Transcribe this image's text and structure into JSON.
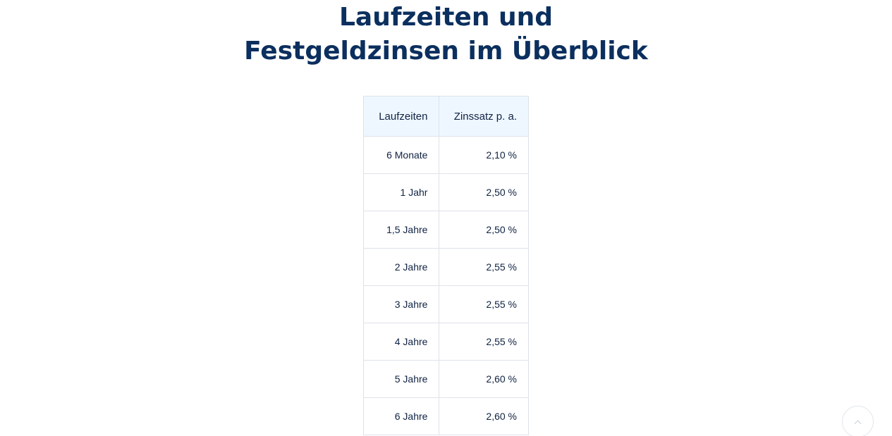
{
  "heading": {
    "line1": "Laufzeiten und",
    "line2": "Festgeldzinsen im Überblick"
  },
  "table": {
    "headers": [
      "Laufzeiten",
      "Zinssatz p. a."
    ],
    "rows": [
      {
        "term": "6 Monate",
        "rate": "2,10 %"
      },
      {
        "term": "1 Jahr",
        "rate": "2,50 %"
      },
      {
        "term": "1,5 Jahre",
        "rate": "2,50 %"
      },
      {
        "term": "2 Jahre",
        "rate": "2,55 %"
      },
      {
        "term": "3 Jahre",
        "rate": "2,55 %"
      },
      {
        "term": "4 Jahre",
        "rate": "2,55 %"
      },
      {
        "term": "5 Jahre",
        "rate": "2,60 %"
      },
      {
        "term": "6 Jahre",
        "rate": "2,60 %"
      }
    ]
  },
  "scroll_to_top": {
    "icon": "chevron-up-icon"
  },
  "colors": {
    "heading": "#0b2f5e",
    "table_header_bg": "#eef6ff",
    "table_border": "#dde3ea",
    "text": "#0f2241"
  }
}
